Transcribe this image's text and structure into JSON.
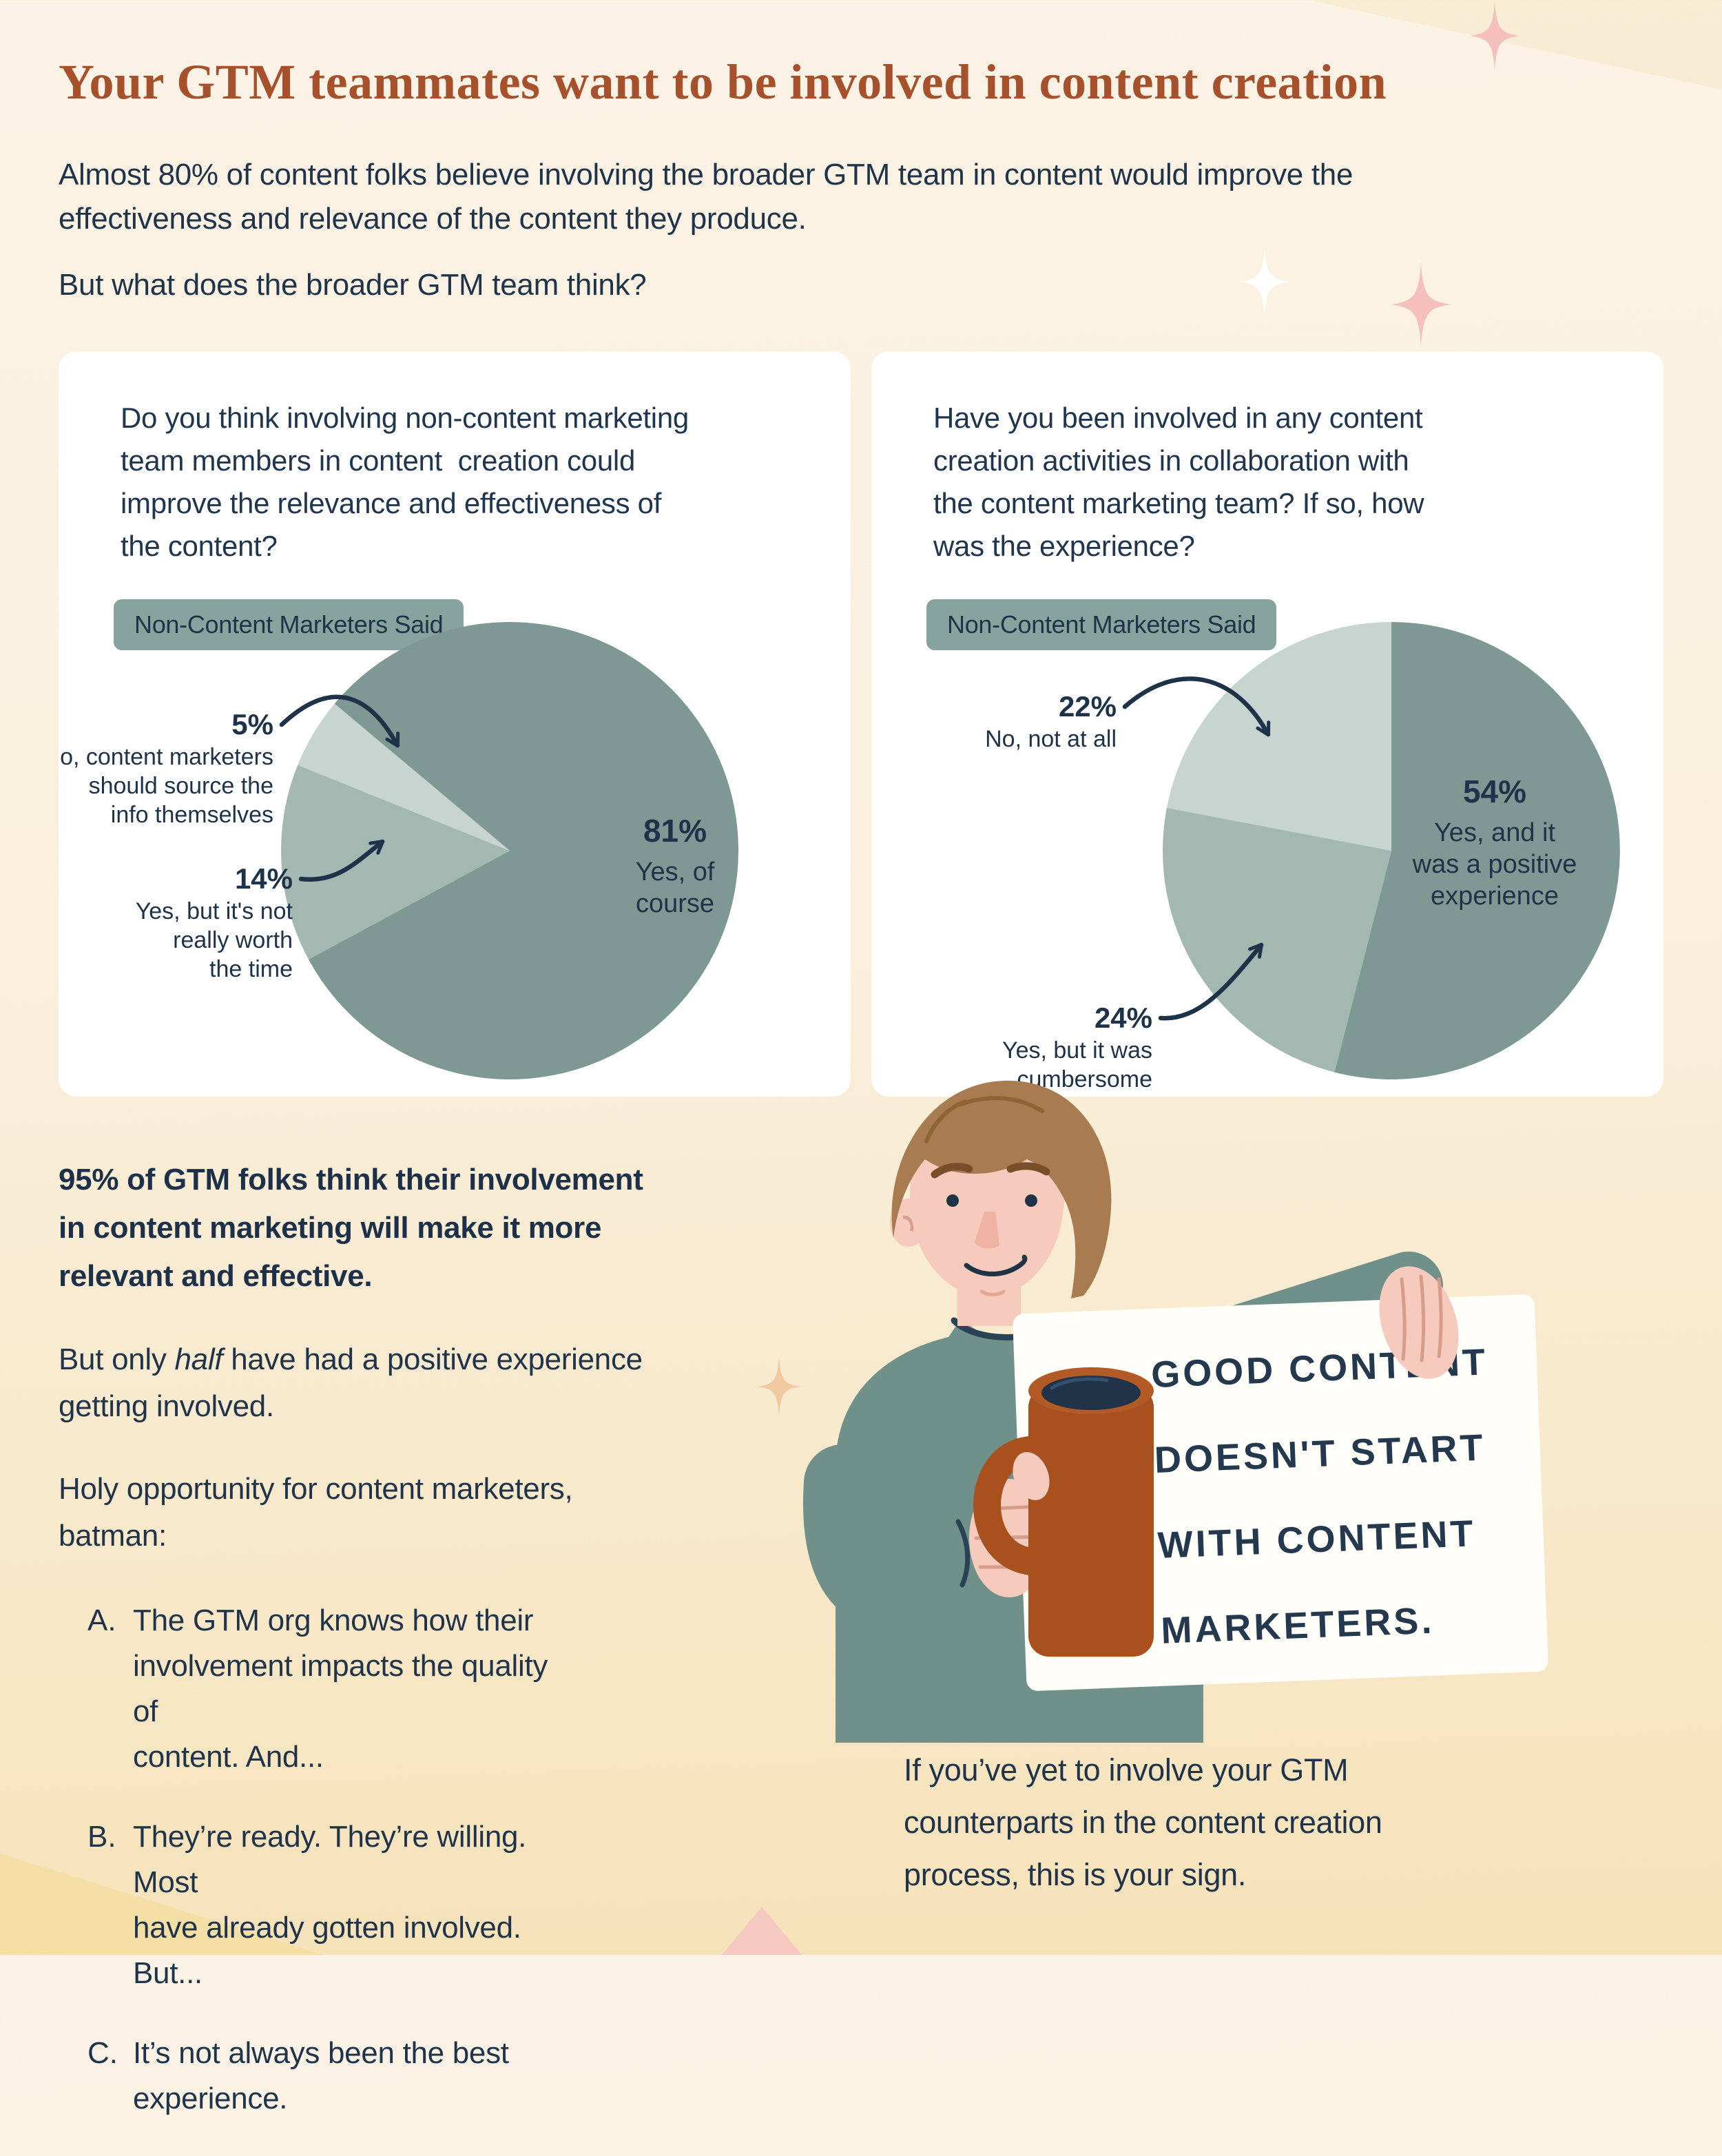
{
  "colors": {
    "background_top": "#FBF3E6",
    "background_bottom": "#F6E2B8",
    "title_accent": "#A6512C",
    "body_text": "#1F344B",
    "card_bg": "#FFFFFF",
    "badge_bg": "#86A39D",
    "pie_dark": "#7E9993",
    "pie_mid": "#A3B8B1",
    "pie_light": "#C7D4CF",
    "arrow": "#1E3349",
    "sweater": "#70908A",
    "skin": "#F6CBBE",
    "hair": "#A87C50",
    "mug": "#A8511F",
    "coffee": "#203349",
    "sparkle_pink": "#F5BFBC",
    "sparkle_white": "#FFFFFF",
    "sparkle_tan": "#F0C9A0"
  },
  "header": {
    "title": "Your GTM teammates want to be involved in content creation",
    "intro": [
      "Almost 80% of content folks believe involving the broader GTM team in content would improve the",
      "effectiveness and relevance of the content they produce."
    ],
    "intro2": "But what does the broader GTM team think?"
  },
  "cards": [
    {
      "question": [
        "Do you think involving non-content marketing",
        "team members in content  creation could",
        "improve the relevance and effectiveness of",
        "the content?"
      ],
      "badge": "Non-Content Marketers Said"
    },
    {
      "question": [
        "Have you been involved in any content",
        "creation activities in collaboration with",
        "the content marketing team? If so, how",
        "was the experience?"
      ],
      "badge": "Non-Content Marketers Said"
    }
  ],
  "chart_data": [
    {
      "type": "pie",
      "title": "Do you think involving non-content marketing team members in content creation could improve the relevance and effectiveness of the content?",
      "legend": "Non-Content Marketers Said",
      "slices": [
        {
          "value": 81,
          "pct_label": "81%",
          "label": "Yes, of course",
          "label_lines": [
            "Yes, of",
            "course"
          ],
          "color_role": "dark"
        },
        {
          "value": 14,
          "pct_label": "14%",
          "label": "Yes, but it's not really worth the time",
          "label_lines": [
            "Yes, but it's not",
            "really worth",
            "the time"
          ],
          "color_role": "mid"
        },
        {
          "value": 5,
          "pct_label": "5%",
          "label": "No, content marketers should source the info themselves",
          "label_lines": [
            "No, content marketers",
            "should source the",
            "info themselves"
          ],
          "color_role": "light"
        }
      ]
    },
    {
      "type": "pie",
      "title": "Have you been involved in any content creation activities in collaboration with the content marketing team? If so, how was the experience?",
      "legend": "Non-Content Marketers Said",
      "slices": [
        {
          "value": 54,
          "pct_label": "54%",
          "label": "Yes, and it was a positive experience",
          "label_lines": [
            "Yes, and it",
            "was a positive",
            "experience"
          ],
          "color_role": "dark"
        },
        {
          "value": 24,
          "pct_label": "24%",
          "label": "Yes, but it was cumbersome",
          "label_lines": [
            "Yes, but it was",
            "cumbersome"
          ],
          "color_role": "mid"
        },
        {
          "value": 22,
          "pct_label": "22%",
          "label": "No, not at all",
          "label_lines": [
            "No, not at all"
          ],
          "color_role": "light"
        }
      ]
    }
  ],
  "insights": {
    "headline": [
      "95% of GTM folks think their involvement",
      "in content marketing will make it more",
      "relevant and effective."
    ],
    "half_pre": "But only ",
    "half_italic": "half",
    "half_post": " have had a positive experience\ngetting involved.",
    "opportunity": [
      "Holy opportunity for content marketers,",
      "batman:"
    ],
    "list": [
      {
        "letter": "A.",
        "text": [
          "The GTM org knows how their",
          "involvement impacts the quality of",
          "content. And..."
        ]
      },
      {
        "letter": "B.",
        "text": [
          "They’re ready. They’re willing. Most",
          "have already gotten involved. But..."
        ]
      },
      {
        "letter": "C.",
        "text": [
          "It’s not always been the best",
          "experience."
        ]
      }
    ],
    "closing": [
      "If you’ve yet to involve your GTM",
      "counterparts in the content creation",
      "process, this is your sign."
    ]
  },
  "sign": {
    "lines": [
      "GOOD CONTENT",
      "DOESN'T START",
      "WITH CONTENT",
      "MARKETERS."
    ]
  }
}
